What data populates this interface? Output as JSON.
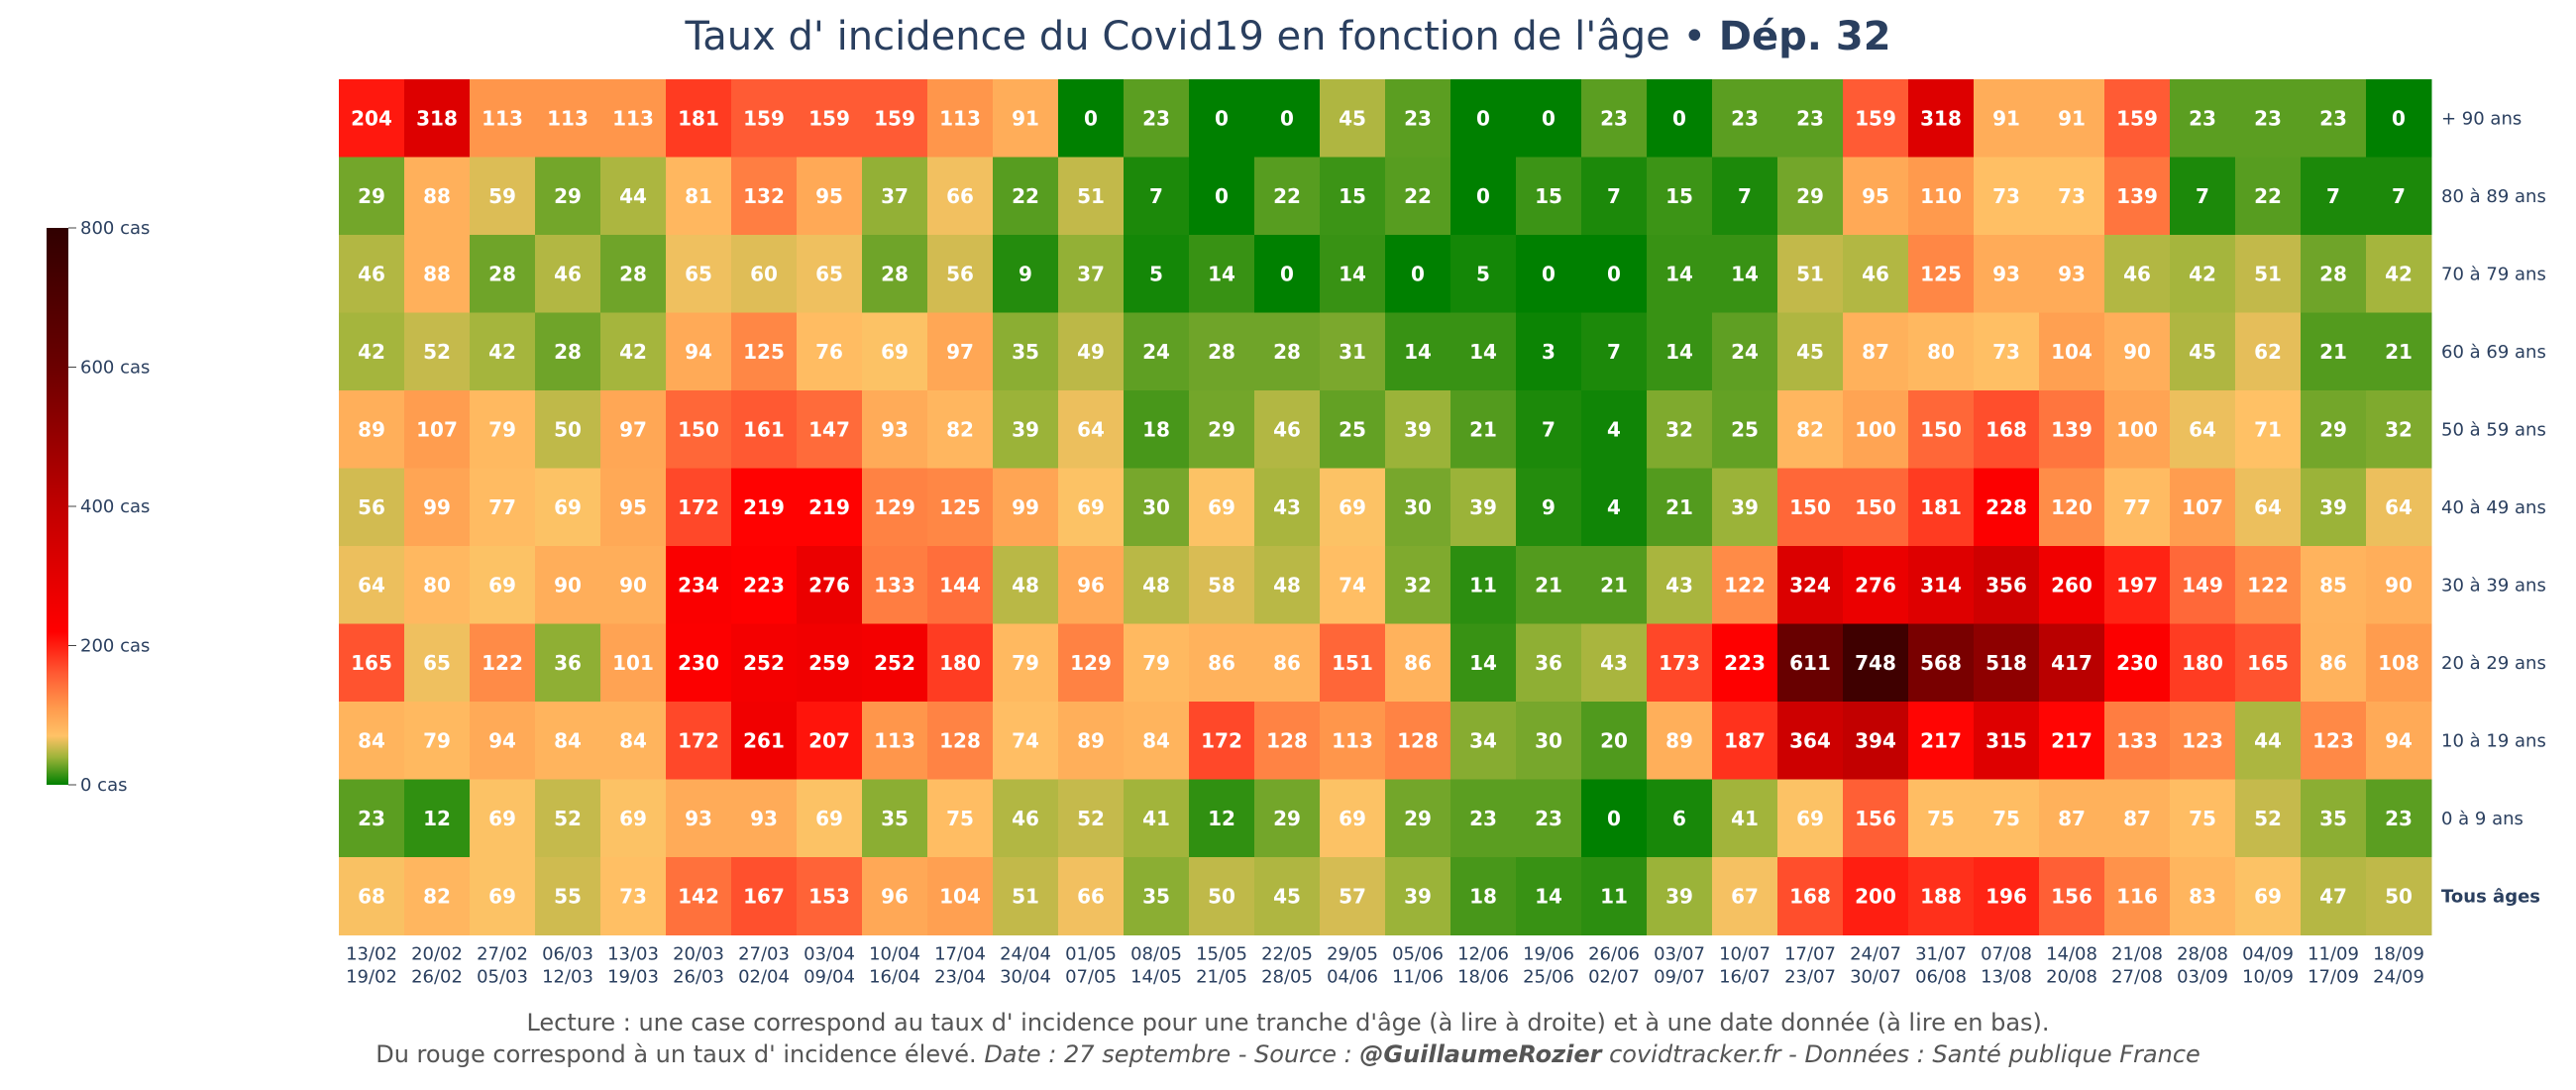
{
  "chart_data": {
    "type": "heatmap",
    "title": "Taux d' incidence du Covid19 en fonction de l'âge",
    "title_separator": " • ",
    "title_bold": "Dép. 32",
    "x_start": [
      "13/02",
      "20/02",
      "27/02",
      "06/03",
      "13/03",
      "20/03",
      "27/03",
      "03/04",
      "10/04",
      "17/04",
      "24/04",
      "01/05",
      "08/05",
      "15/05",
      "22/05",
      "29/05",
      "05/06",
      "12/06",
      "19/06",
      "26/06",
      "03/07",
      "10/07",
      "17/07",
      "24/07",
      "31/07",
      "07/08",
      "14/08",
      "21/08",
      "28/08",
      "04/09",
      "11/09",
      "18/09"
    ],
    "x_end": [
      "19/02",
      "26/02",
      "05/03",
      "12/03",
      "19/03",
      "26/03",
      "02/04",
      "09/04",
      "16/04",
      "23/04",
      "30/04",
      "07/05",
      "14/05",
      "21/05",
      "28/05",
      "04/06",
      "11/06",
      "18/06",
      "25/06",
      "02/07",
      "09/07",
      "16/07",
      "23/07",
      "30/07",
      "06/08",
      "13/08",
      "20/08",
      "27/08",
      "03/09",
      "10/09",
      "17/09",
      "24/09"
    ],
    "rows": [
      "+ 90 ans",
      "80 à 89 ans",
      "70 à 79 ans",
      "60 à 69 ans",
      "50 à 59 ans",
      "40 à 49 ans",
      "30 à 39 ans",
      "20 à 29 ans",
      "10 à 19 ans",
      "0 à 9 ans",
      "Tous âges"
    ],
    "bold_rows": [
      "Tous âges"
    ],
    "values": [
      [
        204,
        318,
        113,
        113,
        113,
        181,
        159,
        159,
        159,
        113,
        91,
        0,
        23,
        0,
        0,
        45,
        23,
        0,
        0,
        23,
        0,
        23,
        23,
        159,
        318,
        91,
        91,
        159,
        23,
        23,
        23,
        0
      ],
      [
        29,
        88,
        59,
        29,
        44,
        81,
        132,
        95,
        37,
        66,
        22,
        51,
        7,
        0,
        22,
        15,
        22,
        0,
        15,
        7,
        15,
        7,
        29,
        95,
        110,
        73,
        73,
        139,
        7,
        22,
        7,
        7
      ],
      [
        46,
        88,
        28,
        46,
        28,
        65,
        60,
        65,
        28,
        56,
        9,
        37,
        5,
        14,
        0,
        14,
        0,
        5,
        0,
        0,
        14,
        14,
        51,
        46,
        125,
        93,
        93,
        46,
        42,
        51,
        28,
        42
      ],
      [
        42,
        52,
        42,
        28,
        42,
        94,
        125,
        76,
        69,
        97,
        35,
        49,
        24,
        28,
        28,
        31,
        14,
        14,
        3,
        7,
        14,
        24,
        45,
        87,
        80,
        73,
        104,
        90,
        45,
        62,
        21,
        21
      ],
      [
        89,
        107,
        79,
        50,
        97,
        150,
        161,
        147,
        93,
        82,
        39,
        64,
        18,
        29,
        46,
        25,
        39,
        21,
        7,
        4,
        32,
        25,
        82,
        100,
        150,
        168,
        139,
        100,
        64,
        71,
        29,
        32
      ],
      [
        56,
        99,
        77,
        69,
        95,
        172,
        219,
        219,
        129,
        125,
        99,
        69,
        30,
        69,
        43,
        69,
        30,
        39,
        9,
        4,
        21,
        39,
        150,
        150,
        181,
        228,
        120,
        77,
        107,
        64,
        39,
        64
      ],
      [
        64,
        80,
        69,
        90,
        90,
        234,
        223,
        276,
        133,
        144,
        48,
        96,
        48,
        58,
        48,
        74,
        32,
        11,
        21,
        21,
        43,
        122,
        324,
        276,
        314,
        356,
        260,
        197,
        149,
        122,
        85,
        90
      ],
      [
        165,
        65,
        122,
        36,
        101,
        230,
        252,
        259,
        252,
        180,
        79,
        129,
        79,
        86,
        86,
        151,
        86,
        14,
        36,
        43,
        173,
        223,
        611,
        748,
        568,
        518,
        417,
        230,
        180,
        165,
        86,
        108
      ],
      [
        84,
        79,
        94,
        84,
        84,
        172,
        261,
        207,
        113,
        128,
        74,
        89,
        84,
        172,
        128,
        113,
        128,
        34,
        30,
        20,
        89,
        187,
        364,
        394,
        217,
        315,
        217,
        133,
        123,
        44,
        123,
        94
      ],
      [
        23,
        12,
        69,
        52,
        69,
        93,
        93,
        69,
        35,
        75,
        46,
        52,
        41,
        12,
        29,
        69,
        29,
        23,
        23,
        0,
        6,
        41,
        69,
        156,
        75,
        75,
        87,
        87,
        75,
        52,
        35,
        23
      ],
      [
        68,
        82,
        69,
        55,
        73,
        142,
        167,
        153,
        96,
        104,
        51,
        66,
        35,
        50,
        45,
        57,
        39,
        18,
        14,
        11,
        39,
        67,
        168,
        200,
        188,
        196,
        156,
        116,
        83,
        69,
        47,
        50
      ]
    ],
    "colorscale_range": [
      0,
      800
    ],
    "colorbar_ticks": [
      {
        "value": 0,
        "label": "0 cas"
      },
      {
        "value": 200,
        "label": "200 cas"
      },
      {
        "value": 400,
        "label": "400 cas"
      },
      {
        "value": 600,
        "label": "600 cas"
      },
      {
        "value": 800,
        "label": "800 cas"
      }
    ],
    "colorscale": [
      {
        "value": 0,
        "color": "#008000"
      },
      {
        "value": 40,
        "color": "#9fb43a"
      },
      {
        "value": 70,
        "color": "#ffc266"
      },
      {
        "value": 110,
        "color": "#ff9a4d"
      },
      {
        "value": 160,
        "color": "#ff5a33"
      },
      {
        "value": 220,
        "color": "#ff0000"
      },
      {
        "value": 400,
        "color": "#c00000"
      },
      {
        "value": 600,
        "color": "#6b0000"
      },
      {
        "value": 800,
        "color": "#300000"
      }
    ]
  },
  "caption": {
    "line1": "Lecture : une case correspond au taux d' incidence pour une tranche d'âge (à lire à droite) et à une date donnée (à lire en bas).",
    "line2_plain": "Du rouge correspond à un taux d' incidence élevé.  ",
    "line2_italic": "Date : 27 septembre - Source : ",
    "line2_author": "@GuillaumeRozier",
    "line2_rest": " covidtracker.fr - Données : Santé publique France"
  }
}
